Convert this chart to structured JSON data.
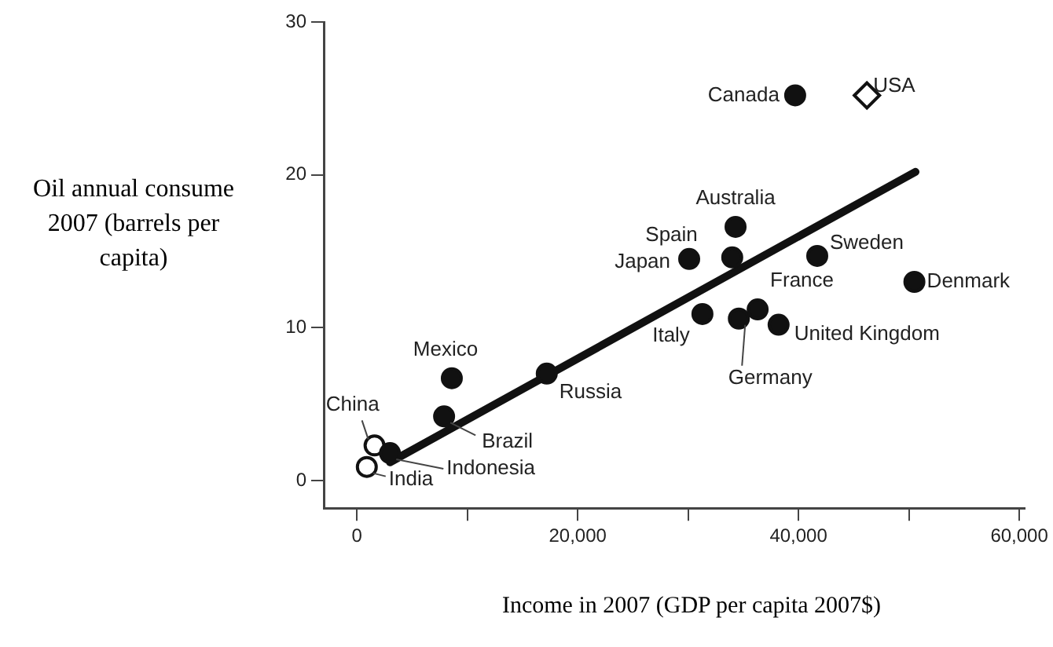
{
  "chart_data": {
    "type": "scatter",
    "xlabel": "Income in 2007 (GDP per capita 2007$)",
    "ylabel": "Oil annual consume 2007 (barrels per capita)",
    "xlim": [
      -3000,
      60500
    ],
    "ylim": [
      -1.8,
      30
    ],
    "xticks": [
      {
        "value": 0,
        "label": "0"
      },
      {
        "value": 10000,
        "label": null
      },
      {
        "value": 20000,
        "label": "20,000"
      },
      {
        "value": 30000,
        "label": null
      },
      {
        "value": 40000,
        "label": "40,000"
      },
      {
        "value": 50000,
        "label": null
      },
      {
        "value": 60000,
        "label": "60,000"
      }
    ],
    "yticks": [
      0,
      10,
      20,
      30
    ],
    "grid": false,
    "legend": false,
    "series": [
      {
        "type": "scatter",
        "marker": "circle",
        "color": "#111111",
        "x": [
          39700,
          34300,
          34000,
          30100,
          41700,
          50500,
          31300,
          34600,
          36300,
          38200,
          8600,
          17200,
          7900,
          3000
        ],
        "values": [
          25.2,
          16.6,
          14.6,
          14.5,
          14.7,
          13.0,
          10.9,
          10.6,
          11.2,
          10.2,
          6.7,
          7.0,
          4.2,
          1.8
        ]
      },
      {
        "type": "scatter",
        "marker": "circle",
        "color": "#ffffff",
        "x": [
          1600,
          900
        ],
        "values": [
          2.3,
          0.9
        ]
      },
      {
        "type": "scatter",
        "marker": "diamond",
        "color": "#ffffff",
        "x": [
          46200
        ],
        "values": [
          25.2
        ]
      },
      {
        "type": "line",
        "marker": "none",
        "line_style": "solid",
        "color": "#111111",
        "x": [
          3000,
          50600
        ],
        "values": [
          1.2,
          20.2
        ]
      }
    ],
    "annotations": [
      {
        "text": "Canada",
        "x": 39700,
        "y": 25.2
      },
      {
        "text": "Australia",
        "x": 34300,
        "y": 16.6
      },
      {
        "text": "Spain",
        "x": 34000,
        "y": 14.6
      },
      {
        "text": "Japan",
        "x": 30100,
        "y": 14.5
      },
      {
        "text": "Sweden",
        "x": 41700,
        "y": 14.7
      },
      {
        "text": "Denmark",
        "x": 50500,
        "y": 13.0
      },
      {
        "text": "Italy",
        "x": 31300,
        "y": 10.9
      },
      {
        "text": "Germany",
        "x": 34600,
        "y": 10.6
      },
      {
        "text": "France",
        "x": 36300,
        "y": 11.2
      },
      {
        "text": "United Kingdom",
        "x": 38200,
        "y": 10.2
      },
      {
        "text": "Mexico",
        "x": 8600,
        "y": 6.7
      },
      {
        "text": "Russia",
        "x": 17200,
        "y": 7.0
      },
      {
        "text": "Brazil",
        "x": 7900,
        "y": 4.2
      },
      {
        "text": "Indonesia",
        "x": 3000,
        "y": 1.8
      },
      {
        "text": "China",
        "x": 1600,
        "y": 2.3
      },
      {
        "text": "India",
        "x": 900,
        "y": 0.9
      },
      {
        "text": "USA",
        "x": 46200,
        "y": 25.2
      }
    ]
  }
}
